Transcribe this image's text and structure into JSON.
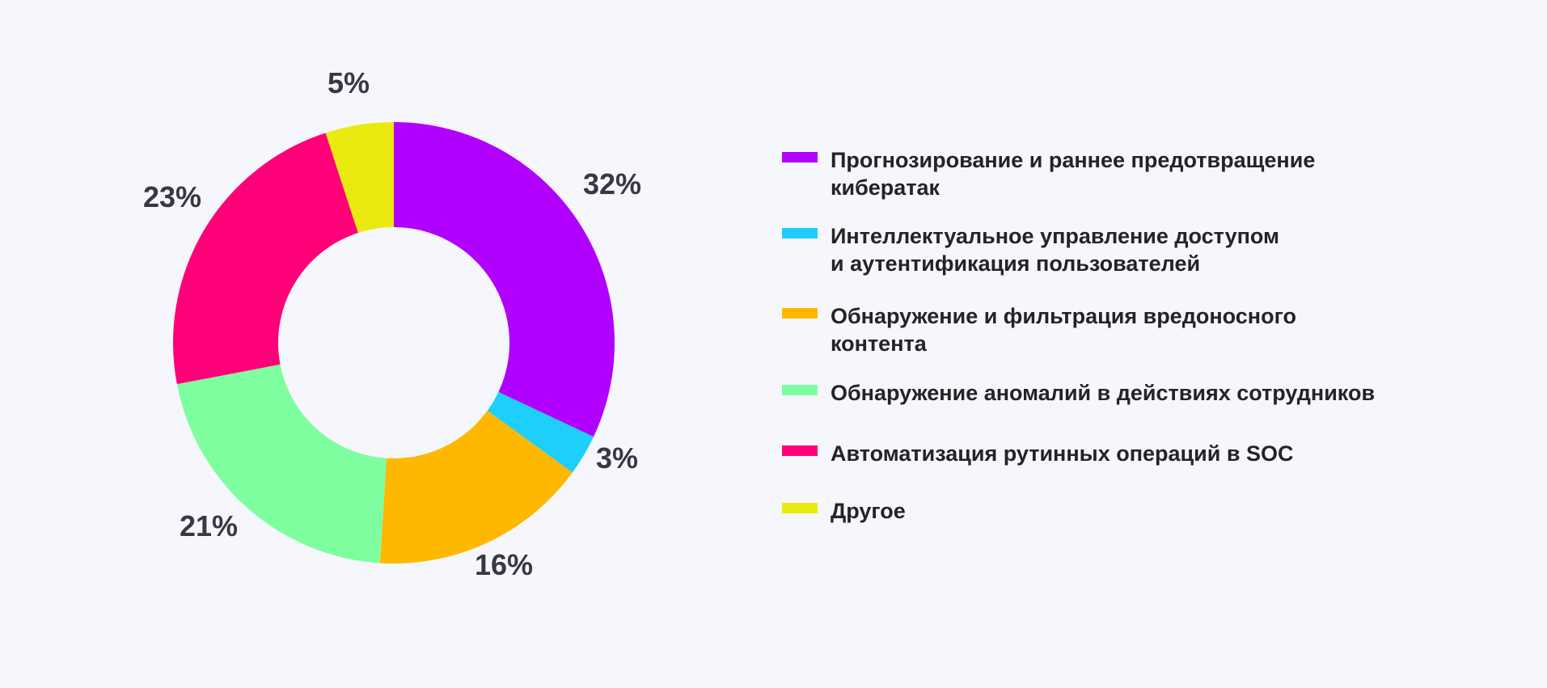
{
  "chart_data": {
    "type": "pie",
    "donut": true,
    "legend_position": "right",
    "slices": [
      {
        "label": "Прогнозирование и раннее предотвращение кибератак",
        "value": 32,
        "value_label": "32%",
        "color": "#b100ff"
      },
      {
        "label": "Интеллектуальное управление доступом и аутентификация пользователей",
        "value": 3,
        "value_label": "3%",
        "color": "#1dcffb"
      },
      {
        "label": "Обнаружение и фильтрация вредоносного контента",
        "value": 16,
        "value_label": "16%",
        "color": "#ffb800"
      },
      {
        "label": "Обнаружение аномалий в действиях сотрудников",
        "value": 21,
        "value_label": "21%",
        "color": "#7ffe9f"
      },
      {
        "label": "Автоматизация рутинных операций в SOC",
        "value": 23,
        "value_label": "23%",
        "color": "#ff0078"
      },
      {
        "label": "Другое",
        "value": 5,
        "value_label": "5%",
        "color": "#eaea11"
      }
    ]
  },
  "legend": {
    "items": [
      {
        "lines": [
          "Прогнозирование и раннее предотвращение",
          "кибератак"
        ],
        "color": "#b100ff"
      },
      {
        "lines": [
          "Интеллектуальное управление доступом",
          "и аутентификация пользователей"
        ],
        "color": "#1dcffb"
      },
      {
        "lines": [
          "Обнаружение и фильтрация вредоносного",
          "контента"
        ],
        "color": "#ffb800"
      },
      {
        "lines": [
          "Обнаружение аномалий в действиях сотрудников"
        ],
        "color": "#7ffe9f"
      },
      {
        "lines": [
          "Автоматизация рутинных операций в SOC"
        ],
        "color": "#ff0078"
      },
      {
        "lines": [
          "Другое"
        ],
        "color": "#eaea11"
      }
    ]
  }
}
